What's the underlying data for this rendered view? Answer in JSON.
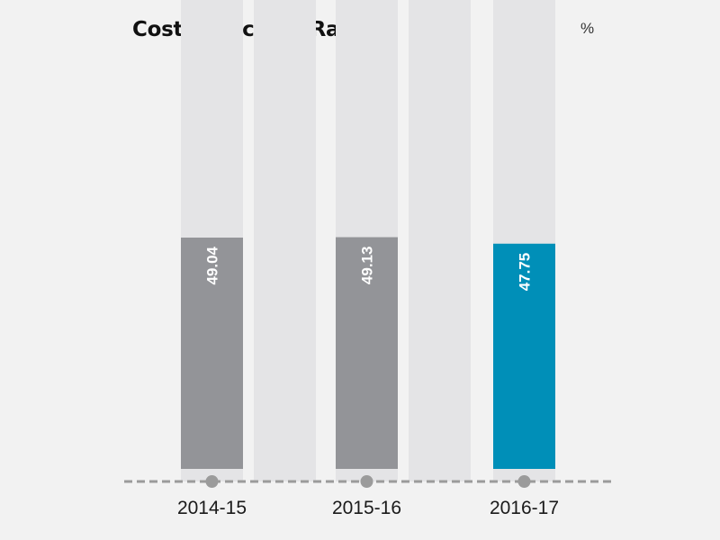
{
  "chart_data": {
    "type": "bar",
    "title": "Cost to Income Ratio",
    "unit": "%",
    "categories": [
      "2014-15",
      "2015-16",
      "2016-17"
    ],
    "values": [
      49.04,
      49.13,
      47.75
    ],
    "value_labels": [
      "49.04",
      "49.13",
      "47.75"
    ],
    "ylim": [
      0,
      100
    ],
    "grid": false,
    "legend": "none"
  },
  "colors": {
    "background": "#f2f2f2",
    "track": "#e4e4e6",
    "bar_past": "#939498",
    "bar_current": "#008fb8",
    "label_text": "#ffffff",
    "axis": "#9b9b9b",
    "tick_text": "#1a1a1a"
  }
}
